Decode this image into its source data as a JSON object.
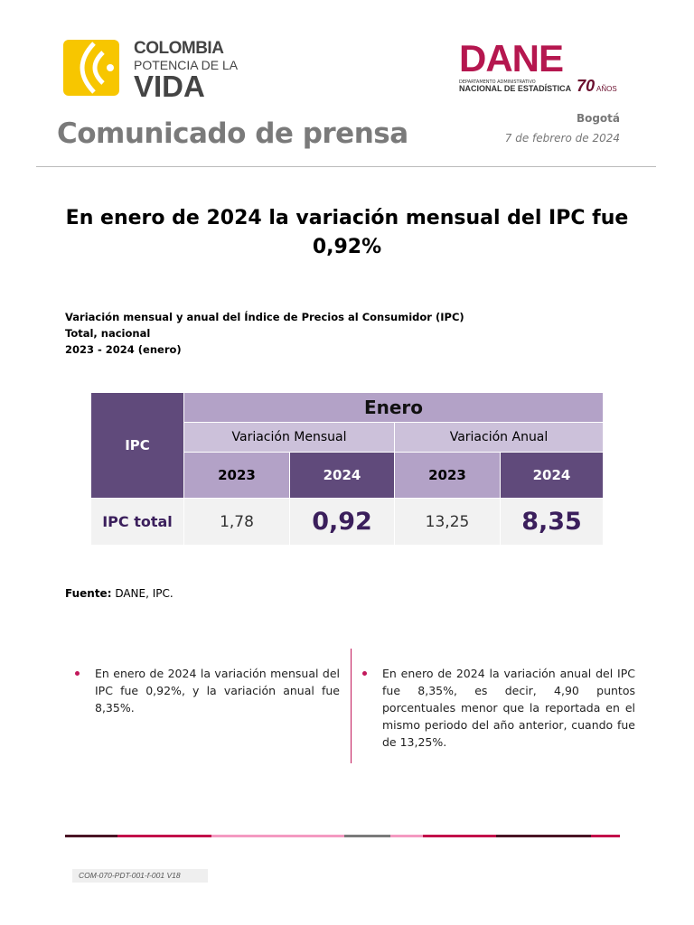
{
  "header": {
    "logo_left": "COLOMBIA POTENCIA DE LA VIDA",
    "logo_left_lines": [
      "COLOMBIA",
      "POTENCIA DE LA",
      "VIDA"
    ],
    "logo_right": "DANE DEPARTAMENTO ADMINISTRATIVO NACIONAL DE ESTADÍSTICA 70 AÑOS",
    "title": "Comunicado de prensa",
    "city": "Bogotá",
    "date": "7 de febrero de 2024"
  },
  "headline": "En enero de 2024 la variación mensual del IPC fue 0,92%",
  "subtitle": [
    "Variación mensual y anual del Índice de Precios al Consumidor (IPC)",
    "Total, nacional",
    "2023 - 2024 (enero)"
  ],
  "table": {
    "row_header": "IPC",
    "period": "Enero",
    "groups": [
      "Variación Mensual",
      "Variación Anual"
    ],
    "years": [
      "2023",
      "2024",
      "2023",
      "2024"
    ],
    "row_label": "IPC total",
    "values": [
      "1,78",
      "0,92",
      "13,25",
      "8,35"
    ]
  },
  "source": {
    "label": "Fuente:",
    "text": " DANE, IPC."
  },
  "bullets": [
    "En enero de 2024 la variación mensual del IPC fue 0,92%, y la variación anual fue 8,35%.",
    "En enero de 2024 la variación anual del IPC fue 8,35%, es decir, 4,90 puntos porcentuales menor que la reportada en el mismo periodo del año anterior, cuando fue de 13,25%."
  ],
  "footer_code": "COM-070-PDT-001-f-001 V18",
  "colors": {
    "dark_purple": "#604a7b",
    "mid_purple": "#b3a2c7",
    "light_purple": "#ccc1da",
    "dane_red": "#b5174f",
    "accent_pink": "#c2185b"
  }
}
